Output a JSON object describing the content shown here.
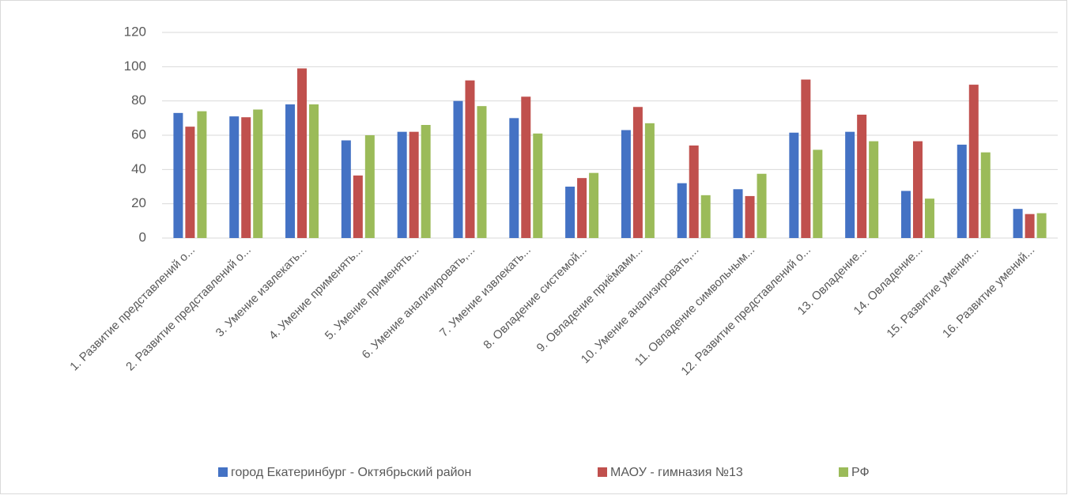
{
  "chart_data": {
    "type": "bar",
    "categories": [
      "1. Развитие представлений о...",
      "2. Развитие представлений о...",
      "3. Умение извлекать...",
      "4. Умение применять...",
      "5. Умение применять...",
      "6. Умение анализировать,...",
      "7. Умение извлекать...",
      "8. Овладение системой...",
      "9. Овладение приёмами...",
      "10. Умение анализировать,...",
      "11. Овладение символьным...",
      "12. Развитие представлений о...",
      "13. Овладение...",
      "14. Овладение...",
      "15. Развитие умения...",
      "16. Развитие умений..."
    ],
    "series": [
      {
        "name": "город Екатеринбург - Октябрьский район",
        "color": "#4472c4",
        "values": [
          73,
          71,
          78,
          57,
          62,
          80,
          70,
          30,
          63,
          32,
          28.5,
          61.5,
          62,
          27.5,
          54.5,
          17
        ]
      },
      {
        "name": "МАОУ - гимназия №13",
        "color": "#c0504d",
        "values": [
          65,
          70.5,
          99,
          36.5,
          62,
          92,
          82.5,
          35,
          76.5,
          54,
          24.5,
          92.5,
          72,
          56.5,
          89.5,
          14
        ]
      },
      {
        "name": "РФ",
        "color": "#9bbb59",
        "values": [
          74,
          75,
          78,
          60,
          66,
          77,
          61,
          38,
          67,
          25,
          37.5,
          51.5,
          56.5,
          23,
          50,
          14.5
        ]
      }
    ],
    "ylim": [
      0,
      120
    ],
    "yticks": [
      0,
      20,
      40,
      60,
      80,
      100,
      120
    ],
    "grid": true,
    "legend": "bottom"
  }
}
